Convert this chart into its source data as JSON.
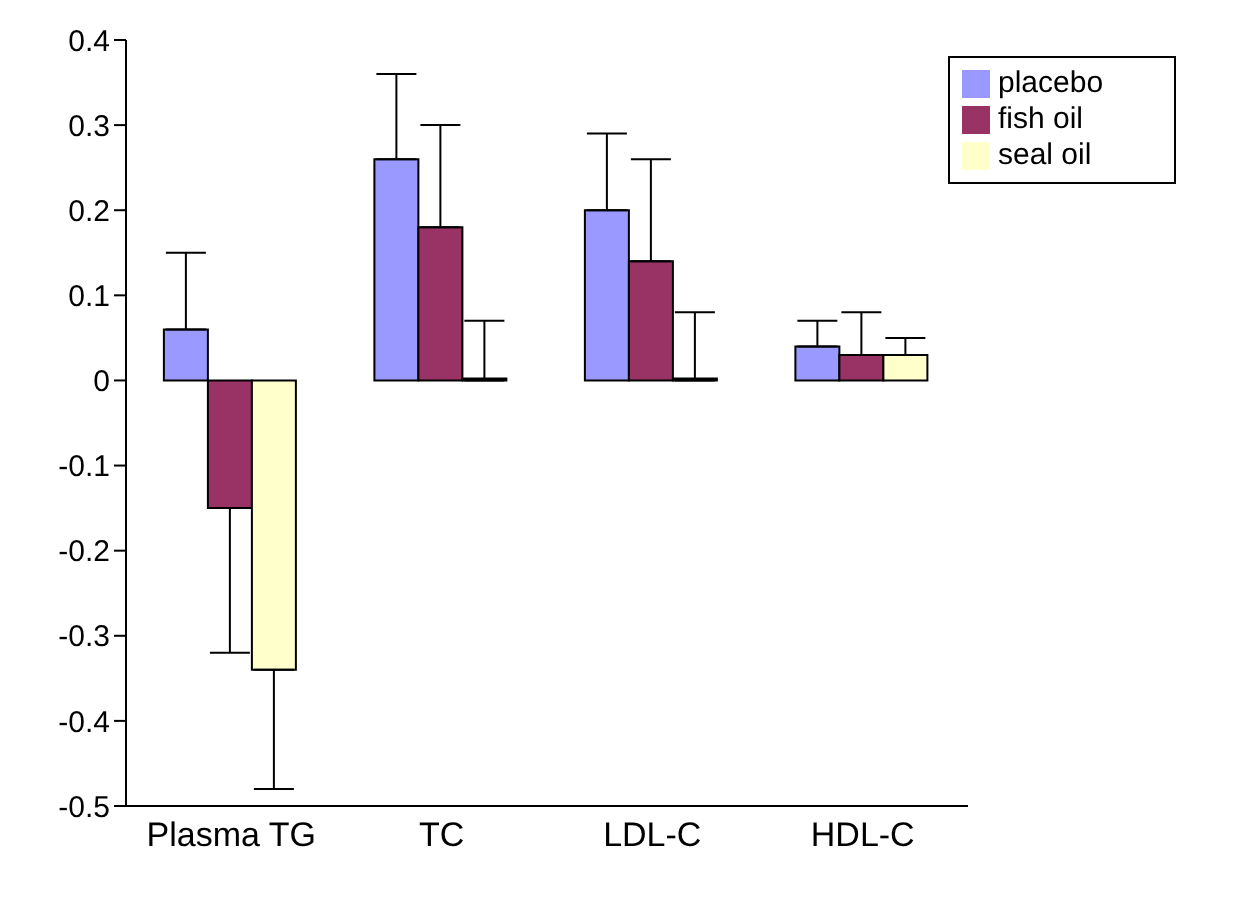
{
  "chart_data": {
    "type": "bar",
    "categories": [
      "Plasma TG",
      "TC",
      "LDL-C",
      "HDL-C"
    ],
    "series": [
      {
        "name": "placebo",
        "color": "#9999ff",
        "values": [
          0.06,
          0.26,
          0.2,
          0.04
        ],
        "errors": [
          [
            0.06,
            0.15
          ],
          [
            0.26,
            0.36
          ],
          [
            0.2,
            0.29
          ],
          [
            0.04,
            0.07
          ]
        ]
      },
      {
        "name": "fish oil",
        "color": "#993366",
        "values": [
          -0.15,
          0.18,
          0.14,
          0.03
        ],
        "errors": [
          [
            -0.32,
            -0.15
          ],
          [
            0.18,
            0.3
          ],
          [
            0.14,
            0.26
          ],
          [
            0.03,
            0.08
          ]
        ]
      },
      {
        "name": "seal oil",
        "color": "#ffffcc",
        "values": [
          -0.34,
          0,
          0,
          0.03
        ],
        "errors": [
          [
            -0.48,
            -0.34
          ],
          [
            0,
            0.07
          ],
          [
            0,
            0.08
          ],
          [
            0.03,
            0.05
          ]
        ]
      }
    ],
    "ylim": [
      -0.5,
      0.4
    ],
    "yticks": [
      -0.5,
      -0.4,
      -0.3,
      -0.2,
      -0.1,
      0,
      0.1,
      0.2,
      0.3,
      0.4
    ],
    "grid": false,
    "legend": "top right"
  }
}
